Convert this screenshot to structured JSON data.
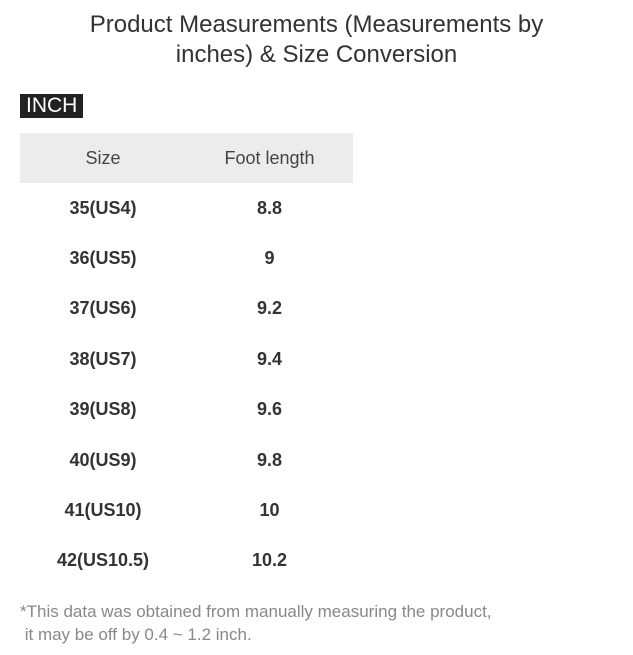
{
  "title_line1": "Product Measurements (Measurements by",
  "title_line2": "inches) & Size Conversion",
  "unit_tag": "INCH",
  "table": {
    "headers": [
      "Size",
      "Foot length"
    ],
    "rows": [
      [
        "35(US4)",
        "8.8"
      ],
      [
        "36(US5)",
        "9"
      ],
      [
        "37(US6)",
        "9.2"
      ],
      [
        "38(US7)",
        "9.4"
      ],
      [
        "39(US8)",
        "9.6"
      ],
      [
        "40(US9)",
        "9.8"
      ],
      [
        "41(US10)",
        "10"
      ],
      [
        "42(US10.5)",
        "10.2"
      ]
    ]
  },
  "note_line1": "*This data was obtained from manually measuring the product,",
  "note_line2": " it may be off by 0.4 ~ 1.2 inch."
}
